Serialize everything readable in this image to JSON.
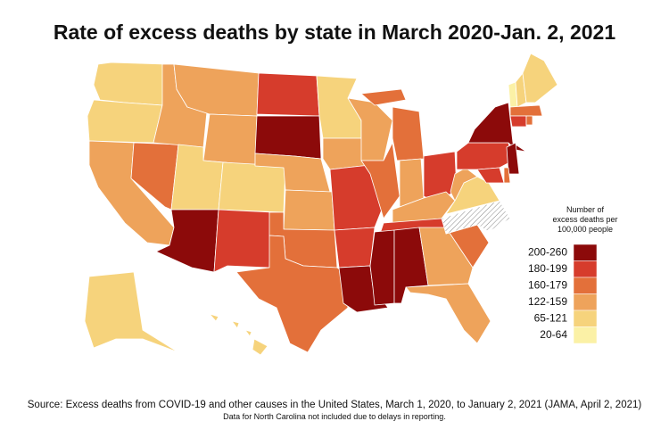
{
  "map": {
    "title": "Rate of excess deaths by state in March 2020-Jan. 2, 2021",
    "legend": {
      "title": "Number of excess deaths per 100,000 people",
      "bins": [
        {
          "label": "200-260",
          "color": "#8c0a0a"
        },
        {
          "label": "180-199",
          "color": "#d63c2c"
        },
        {
          "label": "160-179",
          "color": "#e3703a"
        },
        {
          "label": "122-159",
          "color": "#eea35b"
        },
        {
          "label": "65-121",
          "color": "#f6d37c"
        },
        {
          "label": "20-64",
          "color": "#fbf1a6"
        }
      ]
    },
    "state_bins": [
      4,
      4,
      3,
      2,
      3,
      3,
      3,
      4,
      4,
      0,
      1,
      1,
      0,
      3,
      3,
      2,
      2,
      4,
      3,
      1,
      1,
      0,
      3,
      2,
      2,
      2,
      3,
      1,
      3,
      1,
      0,
      0,
      3,
      3,
      2,
      null,
      4,
      3,
      1,
      0,
      5,
      4,
      4,
      2,
      1,
      1,
      0,
      2,
      2,
      4,
      4
    ],
    "source": "Source: Excess deaths from COVID-19 and other causes in the United States, March 1, 2020, to January 2, 2021 (JAMA, April 2, 2021)",
    "note": "Data for North Carolina not included due to delays in reporting."
  }
}
